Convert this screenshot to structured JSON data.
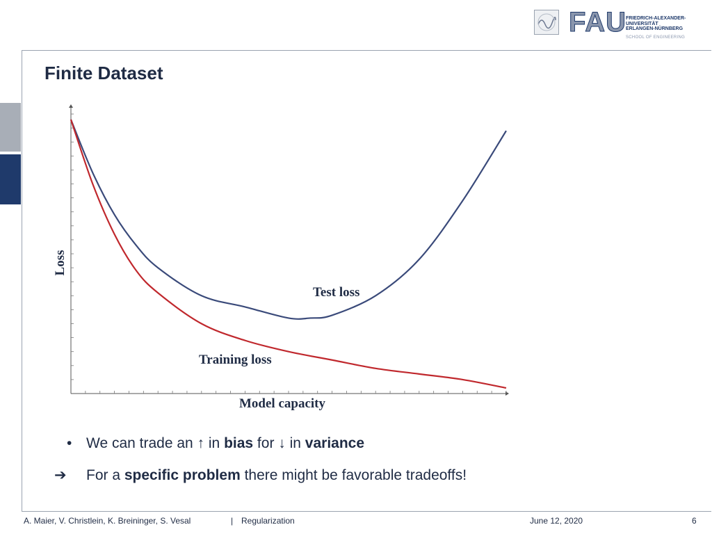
{
  "header": {
    "logo_text": "FAU",
    "university_lines": [
      "FRIEDRICH-ALEXANDER-",
      "UNIVERSITÄT",
      "ERLANGEN-NÜRNBERG"
    ],
    "school": "SCHOOL OF ENGINEERING"
  },
  "slide": {
    "title": "Finite Dataset"
  },
  "chart_data": {
    "type": "line",
    "xlabel": "Model capacity",
    "ylabel": "Loss",
    "xlim": [
      0,
      1
    ],
    "ylim": [
      0,
      1
    ],
    "grid": false,
    "axis_tick_labels": false,
    "series": [
      {
        "name": "Test loss",
        "color": "#3a4a7a",
        "x": [
          0.0,
          0.05,
          0.1,
          0.15,
          0.2,
          0.3,
          0.4,
          0.5,
          0.55,
          0.6,
          0.7,
          0.8,
          0.9,
          1.0
        ],
        "y": [
          0.98,
          0.79,
          0.64,
          0.53,
          0.45,
          0.35,
          0.31,
          0.27,
          0.27,
          0.28,
          0.35,
          0.48,
          0.69,
          0.94
        ]
      },
      {
        "name": "Training loss",
        "color": "#c0282d",
        "x": [
          0.0,
          0.05,
          0.1,
          0.15,
          0.2,
          0.3,
          0.4,
          0.5,
          0.6,
          0.7,
          0.8,
          0.9,
          1.0
        ],
        "y": [
          0.98,
          0.75,
          0.57,
          0.44,
          0.36,
          0.25,
          0.19,
          0.15,
          0.12,
          0.09,
          0.07,
          0.05,
          0.02
        ]
      }
    ]
  },
  "bullets": [
    {
      "marker": "•",
      "text": "We can trade an ↑ in bias for ↓ in variance"
    },
    {
      "marker": "➔",
      "text": "For a specific problem there might be favorable tradeoffs!"
    }
  ],
  "footer": {
    "authors": "A. Maier, V. Christlein, K. Breininger, S. Vesal",
    "separator": "|",
    "topic": "Regularization",
    "date": "June 12, 2020",
    "page": "6"
  }
}
